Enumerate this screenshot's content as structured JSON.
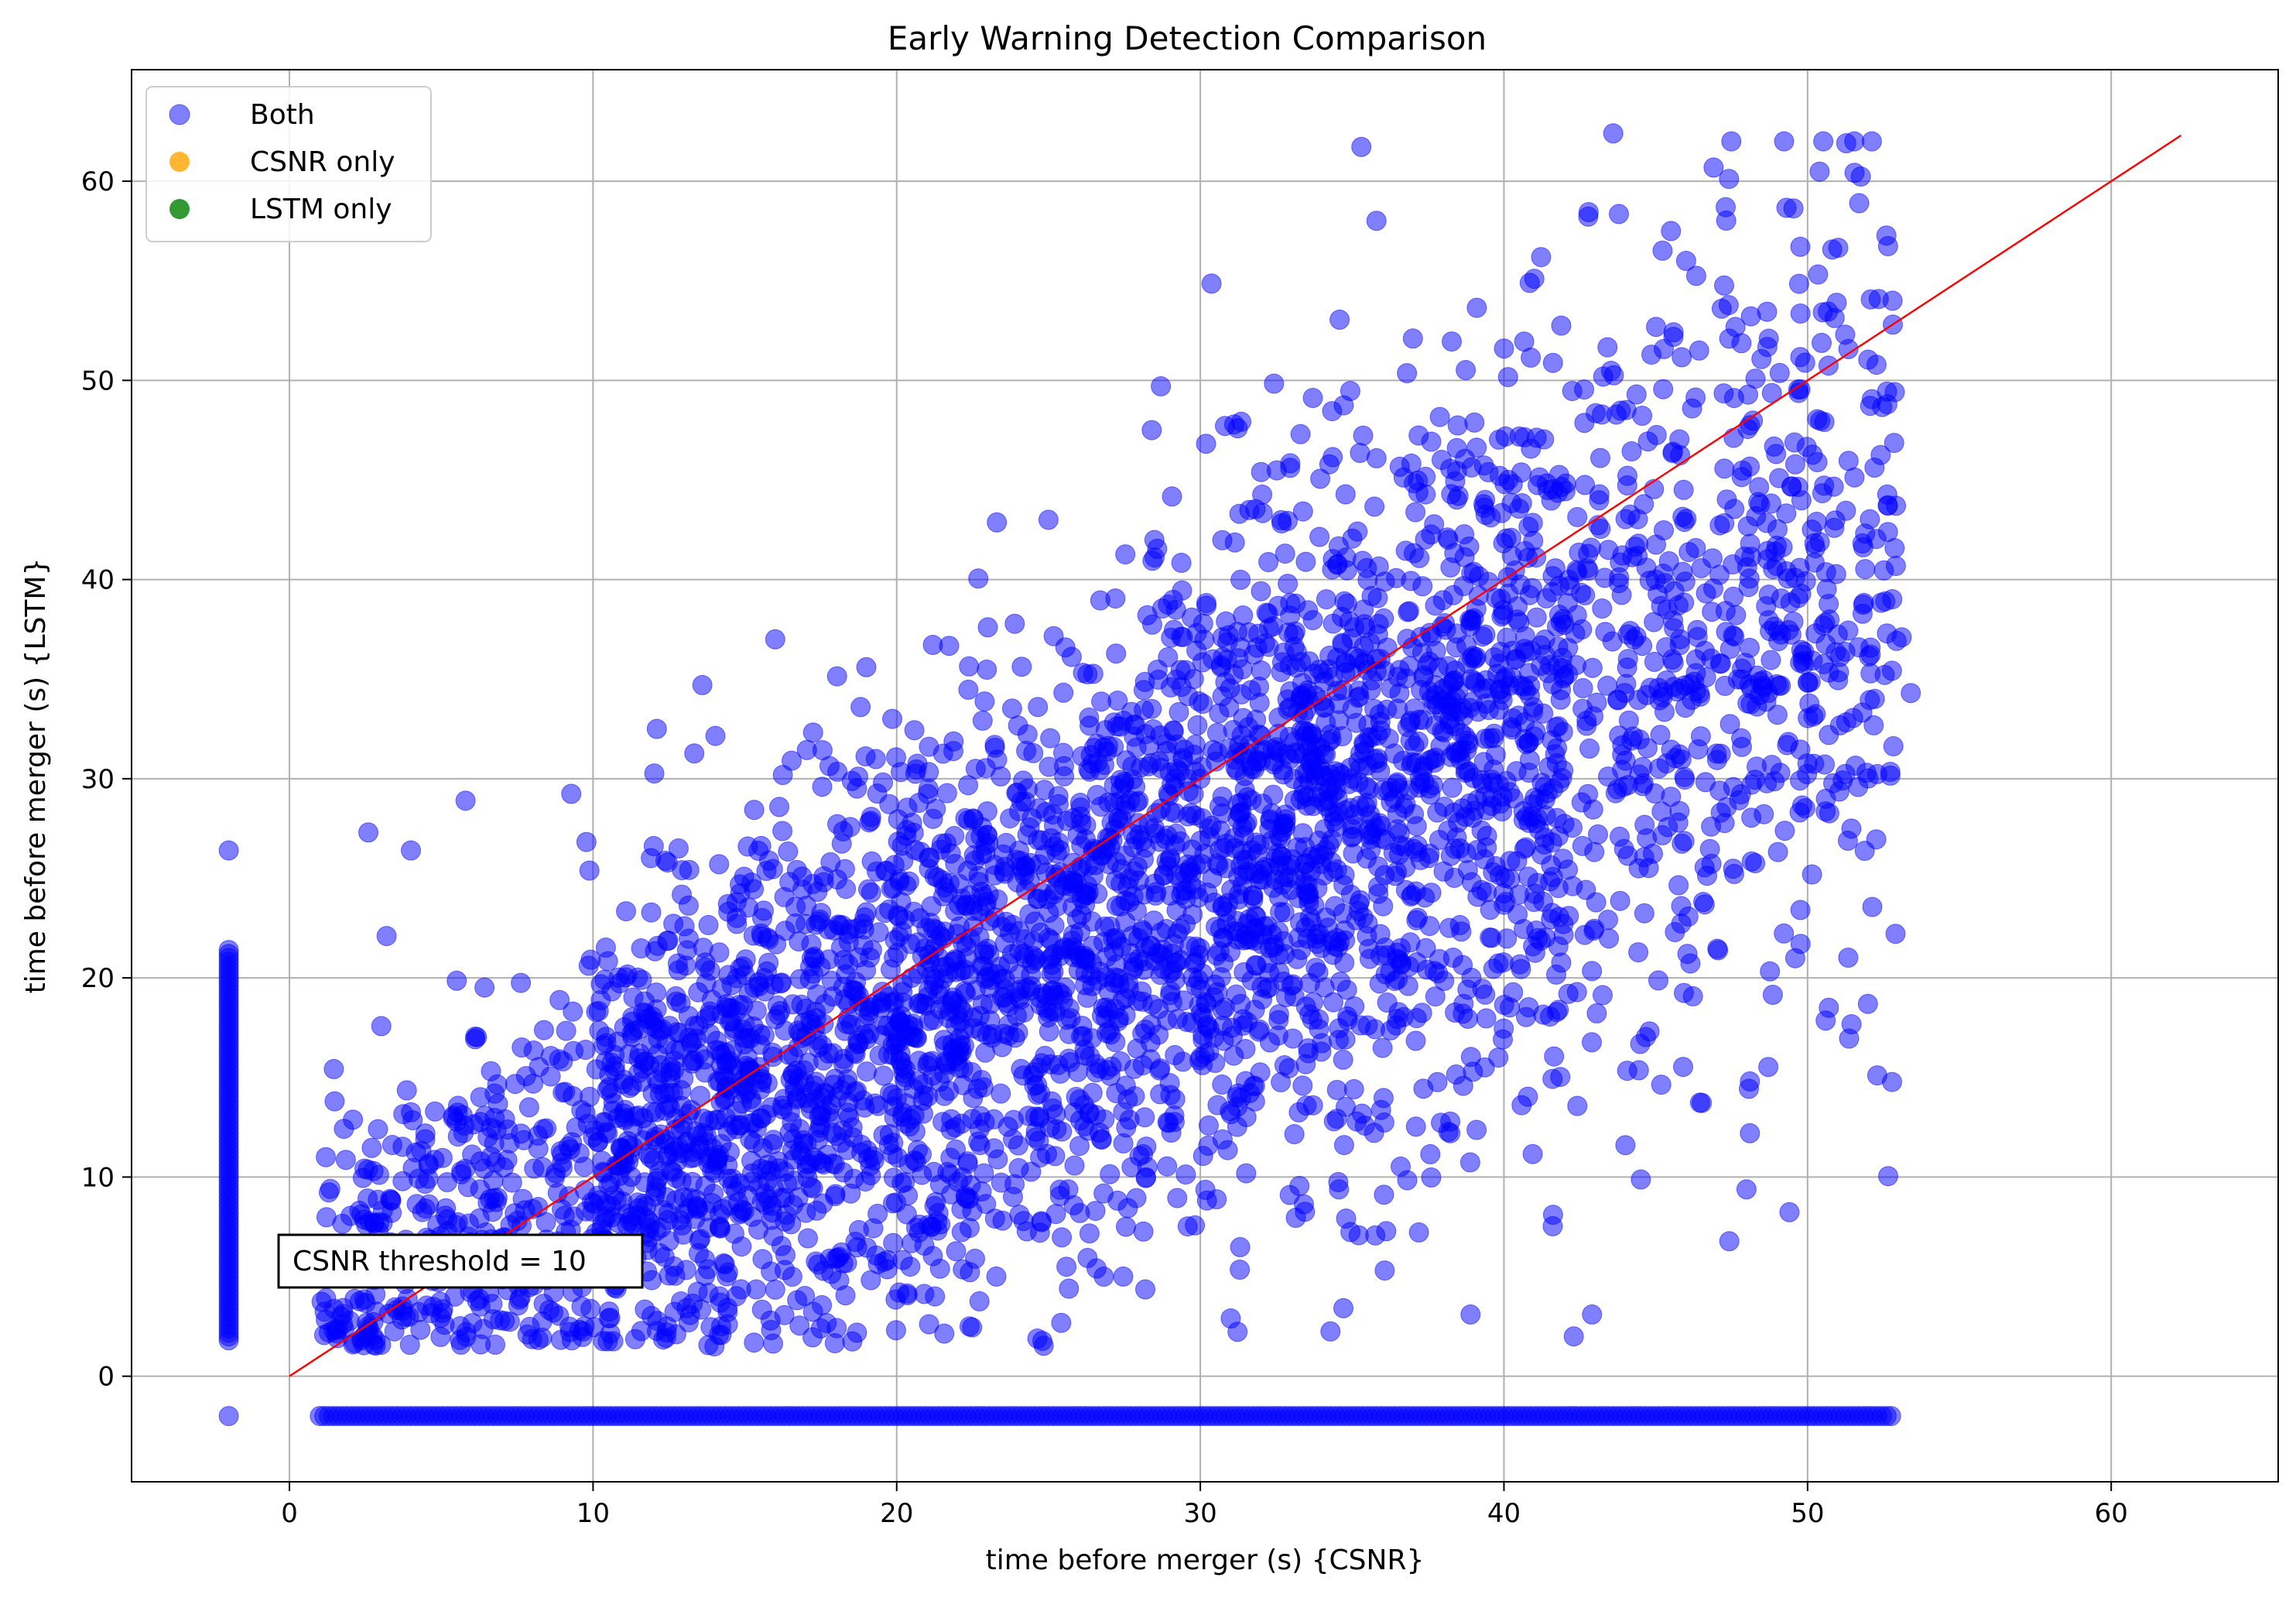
{
  "chart_data": {
    "type": "scatter",
    "title": "Early Warning Detection Comparison",
    "xlabel": "time before merger (s) {CSNR}",
    "ylabel": "time before merger (s) {LSTM}",
    "xlim": [
      -5.2,
      65.5
    ],
    "ylim": [
      -5.3,
      65.6
    ],
    "xticks": [
      0,
      10,
      20,
      30,
      40,
      50,
      60
    ],
    "yticks": [
      0,
      10,
      20,
      30,
      40,
      50,
      60
    ],
    "grid": true,
    "legend": {
      "position": "top-left",
      "entries": [
        {
          "label": "Both",
          "color": "#0000ff",
          "alpha": 0.5
        },
        {
          "label": "CSNR only",
          "color": "#ffa500",
          "alpha": 0.8
        },
        {
          "label": "LSTM only",
          "color": "#008000",
          "alpha": 0.8
        }
      ]
    },
    "series": [
      {
        "name": "Both",
        "color": "#0000ff",
        "alpha": 0.5,
        "description_points": [
          [
            1.2,
            11.0
          ],
          [
            2.6,
            27.3
          ],
          [
            3.2,
            22.1
          ],
          [
            4.0,
            26.4
          ],
          [
            5.8,
            28.9
          ],
          [
            12.1,
            32.5
          ],
          [
            13.6,
            34.7
          ],
          [
            16.0,
            37.0
          ],
          [
            19.0,
            35.6
          ],
          [
            23.0,
            37.6
          ],
          [
            25.0,
            43.0
          ],
          [
            28.7,
            49.7
          ],
          [
            28.4,
            47.5
          ],
          [
            32.0,
            45.4
          ],
          [
            33.3,
            47.3
          ],
          [
            37.0,
            52.1
          ],
          [
            40.0,
            51.6
          ],
          [
            41.0,
            55.1
          ],
          [
            43.6,
            62.4
          ],
          [
            45.5,
            57.5
          ],
          [
            46.0,
            56.0
          ],
          [
            51.7,
            58.9
          ],
          [
            52.8,
            54.0
          ],
          [
            53.1,
            37.1
          ],
          [
            53.4,
            34.3
          ],
          [
            50.7,
            18.5
          ],
          [
            48.1,
            14.8
          ],
          [
            48.1,
            12.2
          ],
          [
            44.0,
            11.6
          ],
          [
            42.3,
            2.0
          ],
          [
            42.9,
            3.1
          ],
          [
            38.9,
            3.1
          ],
          [
            31.0,
            2.9
          ],
          [
            22.4,
            2.5
          ],
          [
            17.5,
            2.4
          ],
          [
            14.0,
            1.5
          ],
          [
            9.3,
            1.8
          ],
          [
            6.3,
            1.6
          ],
          [
            2.1,
            1.6
          ],
          [
            1.3,
            2.2
          ],
          [
            30.0,
            30.0
          ],
          [
            25.0,
            22.0
          ],
          [
            35.0,
            30.0
          ],
          [
            20.0,
            18.0
          ],
          [
            15.0,
            15.0
          ],
          [
            10.0,
            12.0
          ],
          [
            40.0,
            35.0
          ],
          [
            45.0,
            40.0
          ]
        ],
        "bands": [
          {
            "x": -2.0,
            "y_range": [
              1.8,
              21.5
            ],
            "note": "vertical band (LSTM detected, no CSNR)"
          },
          {
            "x_range": [
              1.0,
              52.8
            ],
            "y": -2.0,
            "note": "horizontal band (CSNR detected, no LSTM)"
          }
        ],
        "n_points": 4200
      },
      {
        "name": "CSNR only",
        "color": "#ffa500",
        "alpha": 0.8,
        "description_points": []
      },
      {
        "name": "LSTM only",
        "color": "#008000",
        "alpha": 0.8,
        "description_points": []
      }
    ],
    "reference_line": {
      "label": "y = x",
      "color": "#ff0000",
      "from": [
        0,
        0
      ],
      "to": [
        62.3,
        62.3
      ]
    },
    "annotations": [
      {
        "text": "CSNR threshold = 10",
        "x": 1.0,
        "y": 5.2,
        "boxed": true
      }
    ]
  }
}
